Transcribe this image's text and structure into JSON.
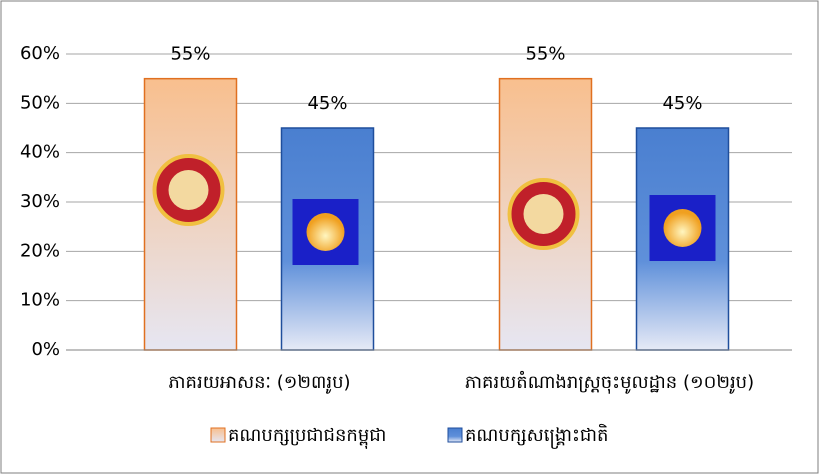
{
  "chart_data": {
    "type": "bar",
    "categories": [
      "ភាគរយអាសនៈ (១២៣រូប)",
      "ភាគរយតំណាងរាស្ត្រចុះមូលដ្ឋាន (១០២រូប)"
    ],
    "series": [
      {
        "name": "គណបក្សប្រជាជនកម្ពុជា",
        "color": "#f8bf8e",
        "values": [
          55,
          55
        ],
        "value_labels": [
          "55%",
          "55%"
        ]
      },
      {
        "name": "គណបក្សសង្គ្រោះជាតិ",
        "color": "#4a7fd0",
        "values": [
          45,
          45
        ],
        "value_labels": [
          "45%",
          "45%"
        ]
      }
    ],
    "ylim": [
      0,
      60
    ],
    "yticks": [
      {
        "value": 0,
        "label": "0%"
      },
      {
        "value": 10,
        "label": "10%"
      },
      {
        "value": 20,
        "label": "20%"
      },
      {
        "value": 30,
        "label": "30%"
      },
      {
        "value": 40,
        "label": "40%"
      },
      {
        "value": 50,
        "label": "50%"
      },
      {
        "value": 60,
        "label": "60%"
      }
    ],
    "grid": true,
    "legend": "bottom"
  }
}
